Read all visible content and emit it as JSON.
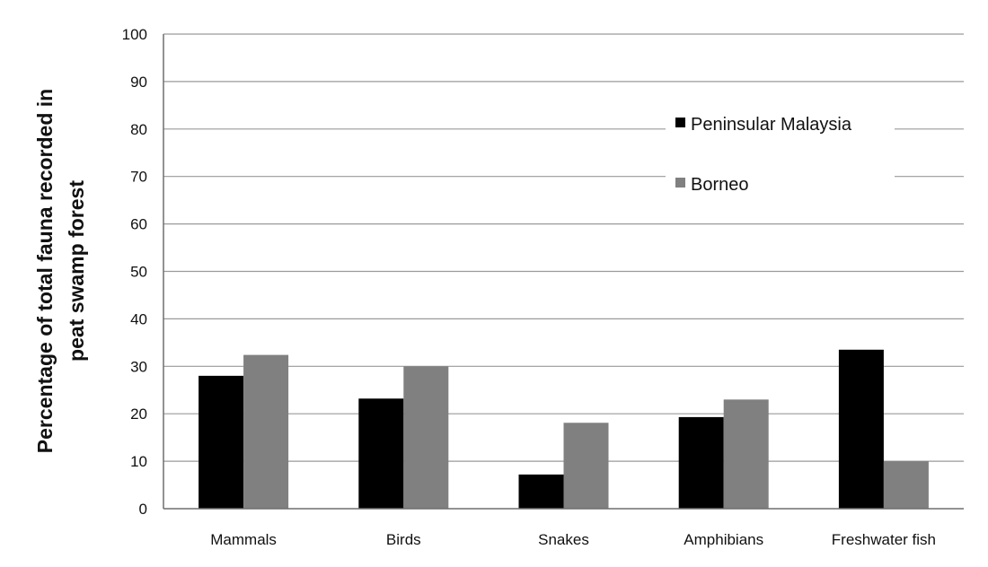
{
  "chart_data": {
    "type": "bar",
    "title": "",
    "xlabel": "",
    "ylabel_lines": [
      "Percentage of total fauna recorded in",
      "peat swamp forest"
    ],
    "categories": [
      "Mammals",
      "Birds",
      "Snakes",
      "Amphibians",
      "Freshwater fish"
    ],
    "series": [
      {
        "name": "Peninsular Malaysia",
        "color": "#000000",
        "values": [
          28,
          23.2,
          7.2,
          19.3,
          33.5
        ]
      },
      {
        "name": "Borneo",
        "color": "#808080",
        "values": [
          32.4,
          30,
          18.1,
          23,
          10
        ]
      }
    ],
    "ylim": [
      0,
      100
    ],
    "yticks": [
      0,
      10,
      20,
      30,
      40,
      50,
      60,
      70,
      80,
      90,
      100
    ],
    "grid": true,
    "legend": "upper-right inside plot"
  }
}
